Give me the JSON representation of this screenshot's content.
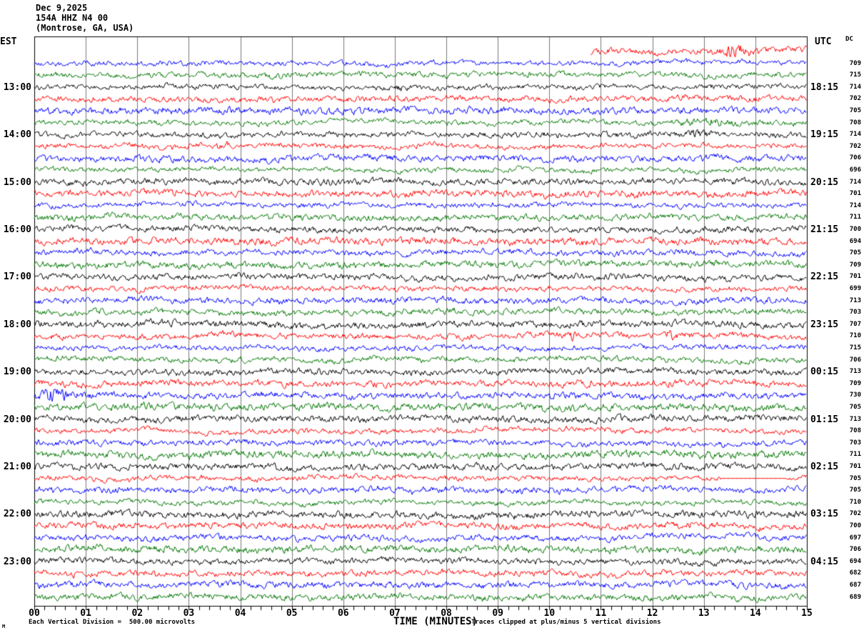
{
  "header": {
    "date": "Dec 9,2025",
    "station": "154A HHZ N4 00",
    "location": "(Montrose, GA, USA)"
  },
  "axes": {
    "left_tz": "EST",
    "right_tz": "UTC",
    "dc_header": "DC",
    "x_title": "TIME (MINUTES)"
  },
  "footer": {
    "scale_note": "Each Vertical Division =  500.00 microvolts",
    "clip_note": "Traces clipped at plus/minus 5 vertical divisions",
    "watermark": "M"
  },
  "colors": {
    "black": "#000000",
    "red": "#ff0000",
    "blue": "#0000ff",
    "green": "#007700",
    "grid": "#7a7a7a",
    "border": "#000000",
    "background": "#ffffff"
  },
  "chart_data": {
    "type": "line",
    "subtype": "helicorder-seismogram",
    "x_axis_range_minutes": [
      0,
      15
    ],
    "x_tick_labels": [
      "00",
      "01",
      "02",
      "03",
      "04",
      "05",
      "06",
      "07",
      "08",
      "09",
      "10",
      "11",
      "12",
      "13",
      "14",
      "15"
    ],
    "minor_ticks_per_minute": 5,
    "grid": "vertical-line-per-minute",
    "minutes_per_row": 15,
    "microvolts_per_division": 500,
    "clip_divisions": 5,
    "left_time_zone": "EST",
    "right_time_zone": "UTC",
    "rows": [
      {
        "color": "red",
        "dc": null,
        "start": 10.8
      },
      {
        "color": "blue",
        "dc": 709
      },
      {
        "color": "green",
        "dc": 715
      },
      {
        "color": "black",
        "dc": 714,
        "est": "13:00",
        "utc": "18:15"
      },
      {
        "color": "red",
        "dc": 702
      },
      {
        "color": "blue",
        "dc": 705
      },
      {
        "color": "green",
        "dc": 708
      },
      {
        "color": "black",
        "dc": 714,
        "est": "14:00",
        "utc": "19:15"
      },
      {
        "color": "red",
        "dc": 702
      },
      {
        "color": "blue",
        "dc": 706
      },
      {
        "color": "green",
        "dc": 696
      },
      {
        "color": "black",
        "dc": 714,
        "est": "15:00",
        "utc": "20:15"
      },
      {
        "color": "red",
        "dc": 701
      },
      {
        "color": "blue",
        "dc": 714
      },
      {
        "color": "green",
        "dc": 711
      },
      {
        "color": "black",
        "dc": 700,
        "est": "16:00",
        "utc": "21:15"
      },
      {
        "color": "red",
        "dc": 694
      },
      {
        "color": "blue",
        "dc": 705
      },
      {
        "color": "green",
        "dc": 709
      },
      {
        "color": "black",
        "dc": 701,
        "est": "17:00",
        "utc": "22:15"
      },
      {
        "color": "red",
        "dc": 699
      },
      {
        "color": "blue",
        "dc": 713
      },
      {
        "color": "green",
        "dc": 703
      },
      {
        "color": "black",
        "dc": 707,
        "est": "18:00",
        "utc": "23:15"
      },
      {
        "color": "red",
        "dc": 710
      },
      {
        "color": "blue",
        "dc": 715
      },
      {
        "color": "green",
        "dc": 706
      },
      {
        "color": "black",
        "dc": 713,
        "est": "19:00",
        "utc": "00:15"
      },
      {
        "color": "red",
        "dc": 709
      },
      {
        "color": "blue",
        "dc": 730
      },
      {
        "color": "green",
        "dc": 705
      },
      {
        "color": "black",
        "dc": 713,
        "est": "20:00",
        "utc": "01:15"
      },
      {
        "color": "red",
        "dc": 708
      },
      {
        "color": "blue",
        "dc": 703
      },
      {
        "color": "green",
        "dc": 711
      },
      {
        "color": "black",
        "dc": 701,
        "est": "21:00",
        "utc": "02:15"
      },
      {
        "color": "red",
        "dc": 705
      },
      {
        "color": "blue",
        "dc": 705
      },
      {
        "color": "green",
        "dc": 710
      },
      {
        "color": "black",
        "dc": 702,
        "est": "22:00",
        "utc": "03:15"
      },
      {
        "color": "red",
        "dc": 700
      },
      {
        "color": "blue",
        "dc": 697
      },
      {
        "color": "green",
        "dc": 706
      },
      {
        "color": "black",
        "dc": 694,
        "est": "23:00",
        "utc": "04:15"
      },
      {
        "color": "red",
        "dc": 682
      },
      {
        "color": "blue",
        "dc": 687
      },
      {
        "color": "green",
        "dc": 689
      }
    ],
    "events": [
      {
        "row": 0,
        "t": 13.6,
        "dur": 0.5,
        "amp": 2.6
      },
      {
        "row": 3,
        "t": 7.1,
        "dur": 0.4,
        "amp": 1.6
      },
      {
        "row": 6,
        "t": 13.1,
        "dur": 0.9,
        "amp": 2.2
      },
      {
        "row": 7,
        "t": 12.85,
        "dur": 0.5,
        "amp": 1.9
      },
      {
        "row": 8,
        "t": 3.65,
        "dur": 0.3,
        "amp": 2.4
      },
      {
        "row": 11,
        "t": 5.65,
        "dur": 0.25,
        "amp": 1.8
      },
      {
        "row": 24,
        "t": 10.4,
        "dur": 0.2,
        "amp": 2.3
      },
      {
        "row": 24,
        "t": 12.35,
        "dur": 0.15,
        "amp": 2.6
      },
      {
        "row": 29,
        "t": 0.35,
        "dur": 0.45,
        "amp": 3.0
      }
    ],
    "flat_segments": [
      {
        "row": 36,
        "t0": 13.35,
        "t1": 14.6
      }
    ]
  }
}
